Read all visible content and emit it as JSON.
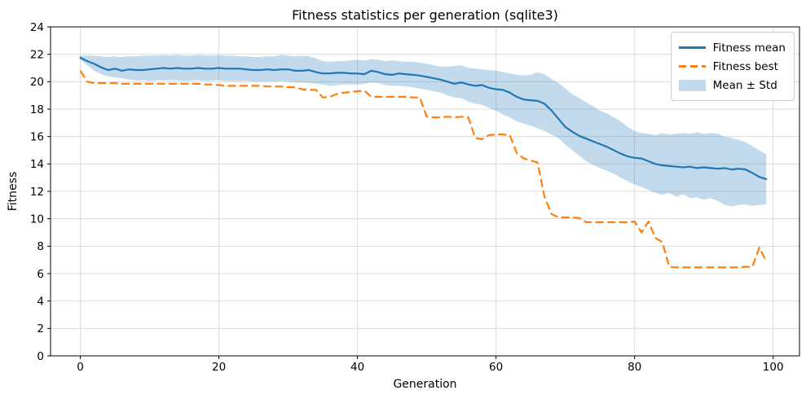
{
  "chart_data": {
    "type": "line",
    "title": "Fitness statistics per generation (sqlite3)",
    "xlabel": "Generation",
    "ylabel": "Fitness",
    "xlim": [
      -4.3,
      103.8
    ],
    "ylim": [
      0,
      24
    ],
    "x_ticks": [
      0,
      20,
      40,
      60,
      80,
      100
    ],
    "y_ticks": [
      0,
      2,
      4,
      6,
      8,
      10,
      12,
      14,
      16,
      18,
      20,
      22,
      24
    ],
    "grid": true,
    "legend_position": "upper right",
    "colors": {
      "mean": "#1f77b4",
      "best": "#ff7f0e",
      "band_fill": "rgba(31,119,180,0.27)",
      "grid": "#dcdcdc",
      "spine": "#000000",
      "text": "#000000",
      "legend_border": "#cccccc",
      "background": "#ffffff"
    },
    "x": [
      0,
      1,
      2,
      3,
      4,
      5,
      6,
      7,
      8,
      9,
      10,
      11,
      12,
      13,
      14,
      15,
      16,
      17,
      18,
      19,
      20,
      21,
      22,
      23,
      24,
      25,
      26,
      27,
      28,
      29,
      30,
      31,
      32,
      33,
      34,
      35,
      36,
      37,
      38,
      39,
      40,
      41,
      42,
      43,
      44,
      45,
      46,
      47,
      48,
      49,
      50,
      51,
      52,
      53,
      54,
      55,
      56,
      57,
      58,
      59,
      60,
      61,
      62,
      63,
      64,
      65,
      66,
      67,
      68,
      69,
      70,
      71,
      72,
      73,
      74,
      75,
      76,
      77,
      78,
      79,
      80,
      81,
      82,
      83,
      84,
      85,
      86,
      87,
      88,
      89,
      90,
      91,
      92,
      93,
      94,
      95,
      96,
      97,
      98,
      99
    ],
    "series": [
      {
        "name": "Fitness mean",
        "style": "solid",
        "color": "#1f77b4",
        "values": [
          21.75,
          21.5,
          21.3,
          21.05,
          20.85,
          20.95,
          20.8,
          20.9,
          20.85,
          20.85,
          20.9,
          20.95,
          21.0,
          20.95,
          21.0,
          20.95,
          20.95,
          21.0,
          20.95,
          20.95,
          21.0,
          20.95,
          20.95,
          20.95,
          20.9,
          20.85,
          20.85,
          20.9,
          20.85,
          20.9,
          20.9,
          20.8,
          20.8,
          20.85,
          20.7,
          20.6,
          20.6,
          20.65,
          20.65,
          20.6,
          20.6,
          20.55,
          20.8,
          20.7,
          20.55,
          20.5,
          20.6,
          20.55,
          20.5,
          20.45,
          20.35,
          20.25,
          20.15,
          20.0,
          19.85,
          19.95,
          19.8,
          19.7,
          19.75,
          19.55,
          19.45,
          19.4,
          19.2,
          18.9,
          18.7,
          18.65,
          18.6,
          18.4,
          17.9,
          17.3,
          16.7,
          16.35,
          16.05,
          15.85,
          15.65,
          15.45,
          15.25,
          15.0,
          14.75,
          14.55,
          14.45,
          14.4,
          14.2,
          14.0,
          13.9,
          13.85,
          13.8,
          13.75,
          13.8,
          13.7,
          13.75,
          13.7,
          13.65,
          13.7,
          13.6,
          13.65,
          13.6,
          13.35,
          13.05,
          12.9
        ]
      },
      {
        "name": "Fitness best",
        "style": "dashed",
        "color": "#ff7f0e",
        "values": [
          20.8,
          20.0,
          19.9,
          19.9,
          19.9,
          19.9,
          19.85,
          19.85,
          19.85,
          19.85,
          19.85,
          19.85,
          19.85,
          19.85,
          19.85,
          19.85,
          19.85,
          19.85,
          19.8,
          19.8,
          19.75,
          19.7,
          19.7,
          19.7,
          19.7,
          19.7,
          19.7,
          19.65,
          19.65,
          19.65,
          19.6,
          19.6,
          19.45,
          19.4,
          19.4,
          18.85,
          18.9,
          19.1,
          19.2,
          19.25,
          19.3,
          19.35,
          18.9,
          18.9,
          18.9,
          18.9,
          18.9,
          18.9,
          18.85,
          18.85,
          17.45,
          17.4,
          17.4,
          17.45,
          17.4,
          17.45,
          17.4,
          15.9,
          15.8,
          16.1,
          16.15,
          16.15,
          16.1,
          14.8,
          14.4,
          14.25,
          14.1,
          11.6,
          10.35,
          10.1,
          10.1,
          10.1,
          10.05,
          9.75,
          9.75,
          9.75,
          9.75,
          9.75,
          9.75,
          9.75,
          9.8,
          9.0,
          9.8,
          8.6,
          8.3,
          6.5,
          6.45,
          6.45,
          6.45,
          6.45,
          6.45,
          6.45,
          6.45,
          6.45,
          6.45,
          6.45,
          6.5,
          6.5,
          7.9,
          6.9
        ]
      },
      {
        "name": "Mean ± Std",
        "style": "band",
        "type": "band",
        "color": "rgba(31,119,180,0.27)",
        "upper": [
          21.9,
          21.9,
          21.9,
          21.85,
          21.8,
          21.85,
          21.8,
          21.85,
          21.85,
          21.9,
          21.9,
          21.9,
          21.95,
          21.9,
          21.95,
          21.9,
          21.9,
          21.95,
          21.9,
          21.9,
          21.95,
          21.9,
          21.9,
          21.85,
          21.85,
          21.8,
          21.8,
          21.85,
          21.85,
          21.95,
          21.9,
          21.85,
          21.9,
          21.85,
          21.7,
          21.5,
          21.45,
          21.5,
          21.5,
          21.55,
          21.6,
          21.55,
          21.65,
          21.6,
          21.5,
          21.55,
          21.5,
          21.45,
          21.45,
          21.4,
          21.3,
          21.2,
          21.1,
          21.1,
          21.15,
          21.2,
          21.0,
          20.95,
          20.9,
          20.85,
          20.8,
          20.7,
          20.6,
          20.5,
          20.45,
          20.5,
          20.7,
          20.55,
          20.2,
          19.9,
          19.5,
          19.1,
          18.8,
          18.5,
          18.2,
          17.9,
          17.7,
          17.4,
          17.1,
          16.7,
          16.4,
          16.25,
          16.2,
          16.1,
          16.25,
          16.15,
          16.2,
          16.25,
          16.2,
          16.3,
          16.2,
          16.25,
          16.2,
          16.0,
          15.9,
          15.75,
          15.6,
          15.3,
          15.0,
          14.7
        ],
        "lower": [
          21.6,
          21.2,
          20.8,
          20.55,
          20.4,
          20.3,
          20.25,
          20.15,
          20.1,
          20.1,
          20.05,
          20.1,
          20.1,
          20.1,
          20.1,
          20.05,
          20.1,
          20.1,
          20.05,
          20.1,
          20.1,
          20.05,
          20.05,
          20.05,
          20.05,
          20.0,
          20.0,
          20.0,
          20.0,
          20.05,
          20.0,
          19.95,
          19.95,
          19.9,
          19.85,
          19.8,
          19.7,
          19.75,
          19.8,
          19.8,
          19.8,
          19.85,
          19.95,
          19.9,
          19.75,
          19.7,
          19.7,
          19.65,
          19.6,
          19.5,
          19.4,
          19.3,
          19.2,
          19.0,
          18.85,
          18.8,
          18.55,
          18.4,
          18.3,
          18.1,
          17.9,
          17.6,
          17.4,
          17.1,
          16.95,
          16.8,
          16.6,
          16.4,
          16.15,
          15.9,
          15.4,
          15.0,
          14.6,
          14.2,
          13.95,
          13.7,
          13.5,
          13.3,
          13.0,
          12.75,
          12.5,
          12.3,
          12.1,
          11.9,
          11.75,
          11.9,
          11.6,
          11.8,
          11.5,
          11.55,
          11.4,
          11.5,
          11.3,
          11.0,
          10.9,
          11.0,
          11.05,
          10.95,
          11.0,
          11.05
        ]
      }
    ]
  },
  "legend": {
    "items": [
      "Fitness mean",
      "Fitness best",
      "Mean ± Std"
    ]
  }
}
